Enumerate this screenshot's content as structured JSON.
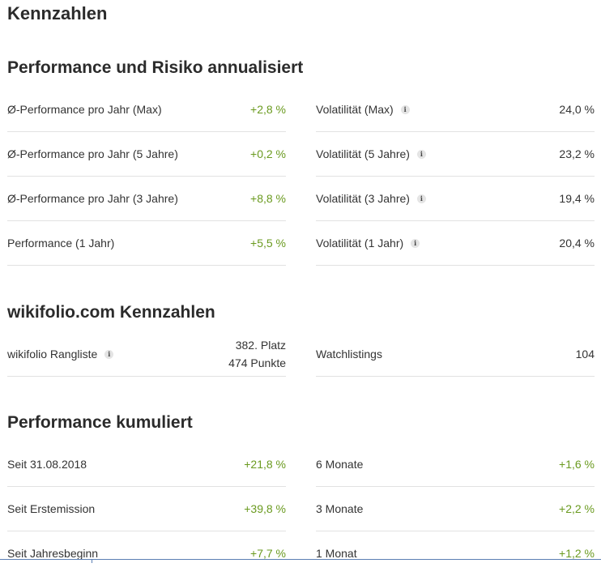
{
  "title": "Kennzahlen",
  "sections": {
    "performance_risk": {
      "heading": "Performance und Risiko annualisiert",
      "left": [
        {
          "label": "Ø-Performance pro Jahr (Max)",
          "value": "+2,8 %"
        },
        {
          "label": "Ø-Performance pro Jahr (5 Jahre)",
          "value": "+0,2 %"
        },
        {
          "label": "Ø-Performance pro Jahr (3 Jahre)",
          "value": "+8,8 %"
        },
        {
          "label": "Performance (1 Jahr)",
          "value": "+5,5 %"
        }
      ],
      "right": [
        {
          "label": "Volatilität (Max)",
          "value": "24,0 %"
        },
        {
          "label": "Volatilität (5 Jahre)",
          "value": "23,2 %"
        },
        {
          "label": "Volatilität (3 Jahre)",
          "value": "19,4 %"
        },
        {
          "label": "Volatilität (1 Jahr)",
          "value": "20,4 %"
        }
      ]
    },
    "wikifolio": {
      "heading": "wikifolio.com Kennzahlen",
      "ranking_label": "wikifolio Rangliste",
      "ranking_place": "382. Platz",
      "ranking_points": "474 Punkte",
      "watchlistings_label": "Watchlistings",
      "watchlistings_value": "104"
    },
    "cumulative": {
      "heading": "Performance kumuliert",
      "left": [
        {
          "label": "Seit 31.08.2018",
          "value": "+21,8 %"
        },
        {
          "label": "Seit Erstemission",
          "value": "+39,8 %"
        },
        {
          "label": "Seit Jahresbeginn",
          "value": "+7,7 %"
        }
      ],
      "right": [
        {
          "label": "6 Monate",
          "value": "+1,6 %"
        },
        {
          "label": "3 Monate",
          "value": "+2,2 %"
        },
        {
          "label": "1 Monat",
          "value": "+1,2 %"
        }
      ]
    }
  },
  "icons": {
    "info": "info-icon"
  },
  "colors": {
    "positive": "#6a9a1f",
    "text": "#333333",
    "heading": "#2b2b2b",
    "divider": "#e2e2e2"
  }
}
